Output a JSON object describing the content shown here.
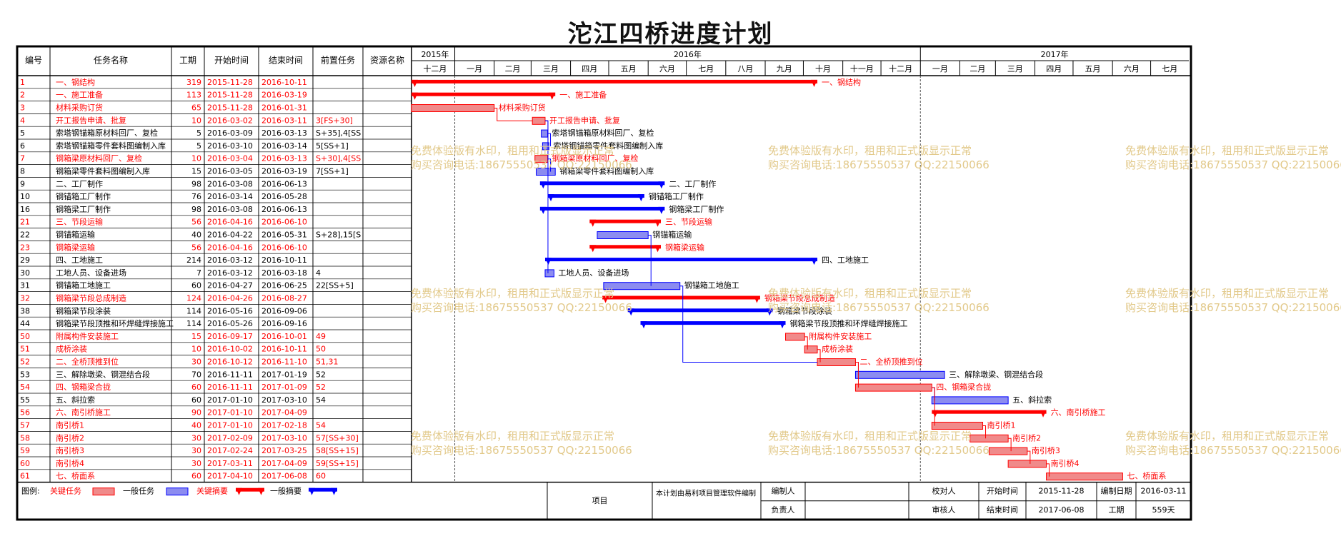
{
  "title": "沱江四桥进度计划",
  "watermark": {
    "line1": "免费体验版有水印，租用和正式版显示正常",
    "line2": "购买咨询电话:18675550537 QQ:22150066"
  },
  "colors": {
    "critical": "#ff0000",
    "normal": "#0000ff",
    "critical_fill": "#f08a8a",
    "normal_fill": "#8c8cf0",
    "watermark": "#e2c98a",
    "grid": "#000000"
  },
  "table_headers": {
    "id": "编号",
    "name": "任务名称",
    "duration": "工期",
    "start": "开始时间",
    "end": "结束时间",
    "pred": "前置任务",
    "resource": "资源名称"
  },
  "chart_data": {
    "type": "gantt",
    "timeline": {
      "years": [
        {
          "label": "2015年",
          "start": "2015-12-01",
          "end": "2016-01-01"
        },
        {
          "label": "2016年",
          "start": "2016-01-01",
          "end": "2017-01-01"
        },
        {
          "label": "2017年",
          "start": "2017-01-01",
          "end": "2017-07-31"
        }
      ],
      "months": [
        {
          "label": "十二月",
          "start": "2015-12-01",
          "end": "2016-01-01"
        },
        {
          "label": "一月",
          "start": "2016-01-01",
          "end": "2016-02-01"
        },
        {
          "label": "二月",
          "start": "2016-02-01",
          "end": "2016-03-01"
        },
        {
          "label": "三月",
          "start": "2016-03-01",
          "end": "2016-04-01"
        },
        {
          "label": "四月",
          "start": "2016-04-01",
          "end": "2016-05-01"
        },
        {
          "label": "五月",
          "start": "2016-05-01",
          "end": "2016-06-01"
        },
        {
          "label": "六月",
          "start": "2016-06-01",
          "end": "2016-07-01"
        },
        {
          "label": "七月",
          "start": "2016-07-01",
          "end": "2016-08-01"
        },
        {
          "label": "八月",
          "start": "2016-08-01",
          "end": "2016-09-01"
        },
        {
          "label": "九月",
          "start": "2016-09-01",
          "end": "2016-10-01"
        },
        {
          "label": "十月",
          "start": "2016-10-01",
          "end": "2016-11-01"
        },
        {
          "label": "十一月",
          "start": "2016-11-01",
          "end": "2016-12-01"
        },
        {
          "label": "十二月",
          "start": "2016-12-01",
          "end": "2017-01-01"
        },
        {
          "label": "一月",
          "start": "2017-01-01",
          "end": "2017-02-01"
        },
        {
          "label": "二月",
          "start": "2017-02-01",
          "end": "2017-03-01"
        },
        {
          "label": "三月",
          "start": "2017-03-01",
          "end": "2017-04-01"
        },
        {
          "label": "四月",
          "start": "2017-04-01",
          "end": "2017-05-01"
        },
        {
          "label": "五月",
          "start": "2017-05-01",
          "end": "2017-06-01"
        },
        {
          "label": "六月",
          "start": "2017-06-01",
          "end": "2017-07-01"
        },
        {
          "label": "七月",
          "start": "2017-07-01",
          "end": "2017-07-31"
        }
      ]
    },
    "tasks": [
      {
        "id": "1",
        "name": "一、钢结构",
        "dur": "319",
        "start": "2015-11-28",
        "end": "2016-10-11",
        "pred": "",
        "critical": true,
        "summary": true,
        "label": "一、钢结构"
      },
      {
        "id": "2",
        "name": "一、施工准备",
        "dur": "113",
        "start": "2015-11-28",
        "end": "2016-03-19",
        "pred": "",
        "critical": true,
        "summary": true,
        "label": "一、施工准备"
      },
      {
        "id": "3",
        "name": "材料采购订货",
        "dur": "65",
        "start": "2015-11-28",
        "end": "2016-01-31",
        "pred": "",
        "critical": true,
        "summary": false,
        "label": "材料采购订货"
      },
      {
        "id": "4",
        "name": "开工报告申请、批复",
        "dur": "10",
        "start": "2016-03-02",
        "end": "2016-03-11",
        "pred": "3[FS+30]",
        "critical": true,
        "summary": false,
        "label": "开工报告申请、批复"
      },
      {
        "id": "5",
        "name": "索塔钢锚箱原材料回厂、复检",
        "dur": "5",
        "start": "2016-03-09",
        "end": "2016-03-13",
        "pred": "S+35],4[SS",
        "critical": false,
        "summary": false,
        "label": "索塔钢锚箱原材料回厂、复检"
      },
      {
        "id": "6",
        "name": "索塔钢锚箱零件套料图编制入库",
        "dur": "5",
        "start": "2016-03-10",
        "end": "2016-03-14",
        "pred": "5[SS+1]",
        "critical": false,
        "summary": false,
        "label": "索塔钢锚箱零件套料图编制入库"
      },
      {
        "id": "7",
        "name": "钢箱梁原材料回厂、复检",
        "dur": "10",
        "start": "2016-03-04",
        "end": "2016-03-13",
        "pred": "S+30],4[SS",
        "critical": true,
        "summary": false,
        "label": "钢箱梁原材料回厂、复检"
      },
      {
        "id": "8",
        "name": "钢箱梁零件套料图编制入库",
        "dur": "15",
        "start": "2016-03-05",
        "end": "2016-03-19",
        "pred": "7[SS+1]",
        "critical": false,
        "summary": false,
        "label": "钢箱梁零件套料图编制入库"
      },
      {
        "id": "9",
        "name": "二、工厂制作",
        "dur": "98",
        "start": "2016-03-08",
        "end": "2016-06-13",
        "pred": "",
        "critical": false,
        "summary": true,
        "label": "二、工厂制作"
      },
      {
        "id": "10",
        "name": "钢锚箱工厂制作",
        "dur": "76",
        "start": "2016-03-14",
        "end": "2016-05-28",
        "pred": "",
        "critical": false,
        "summary": true,
        "label": "钢锚箱工厂制作"
      },
      {
        "id": "16",
        "name": "钢箱梁工厂制作",
        "dur": "98",
        "start": "2016-03-08",
        "end": "2016-06-13",
        "pred": "",
        "critical": false,
        "summary": true,
        "label": "钢箱梁工厂制作"
      },
      {
        "id": "21",
        "name": "三、节段运输",
        "dur": "56",
        "start": "2016-04-16",
        "end": "2016-06-10",
        "pred": "",
        "critical": true,
        "summary": true,
        "label": "三、节段运输"
      },
      {
        "id": "22",
        "name": "钢锚箱运输",
        "dur": "40",
        "start": "2016-04-22",
        "end": "2016-05-31",
        "pred": "S+28],15[S",
        "critical": false,
        "summary": false,
        "label": "钢锚箱运输"
      },
      {
        "id": "23",
        "name": "钢箱梁运输",
        "dur": "56",
        "start": "2016-04-16",
        "end": "2016-06-10",
        "pred": "",
        "critical": true,
        "summary": true,
        "label": "钢箱梁运输"
      },
      {
        "id": "29",
        "name": "四、工地施工",
        "dur": "214",
        "start": "2016-03-12",
        "end": "2016-10-11",
        "pred": "",
        "critical": false,
        "summary": true,
        "label": "四、工地施工"
      },
      {
        "id": "30",
        "name": "工地人员、设备进场",
        "dur": "7",
        "start": "2016-03-12",
        "end": "2016-03-18",
        "pred": "4",
        "critical": false,
        "summary": false,
        "label": "工地人员、设备进场"
      },
      {
        "id": "31",
        "name": "钢锚箱工地施工",
        "dur": "60",
        "start": "2016-04-27",
        "end": "2016-06-25",
        "pred": "22[SS+5]",
        "critical": false,
        "summary": false,
        "label": "钢锚箱工地施工"
      },
      {
        "id": "32",
        "name": "钢箱梁节段总成制造",
        "dur": "124",
        "start": "2016-04-26",
        "end": "2016-08-27",
        "pred": "",
        "critical": true,
        "summary": true,
        "label": "钢箱梁节段总成制造"
      },
      {
        "id": "38",
        "name": "钢箱梁节段涂装",
        "dur": "114",
        "start": "2016-05-16",
        "end": "2016-09-06",
        "pred": "",
        "critical": false,
        "summary": true,
        "label": "钢箱梁节段涂装"
      },
      {
        "id": "44",
        "name": "钢箱梁节段顶推和环焊缝焊接施工",
        "dur": "114",
        "start": "2016-05-26",
        "end": "2016-09-16",
        "pred": "",
        "critical": false,
        "summary": true,
        "label": "钢箱梁节段顶推和环焊缝焊接施工"
      },
      {
        "id": "50",
        "name": "附属构件安装施工",
        "dur": "15",
        "start": "2016-09-17",
        "end": "2016-10-01",
        "pred": "49",
        "critical": true,
        "summary": false,
        "label": "附属构件安装施工"
      },
      {
        "id": "51",
        "name": "成桥涂装",
        "dur": "10",
        "start": "2016-10-02",
        "end": "2016-10-11",
        "pred": "50",
        "critical": true,
        "summary": false,
        "label": "成桥涂装"
      },
      {
        "id": "52",
        "name": "二、全桥顶推到位",
        "dur": "30",
        "start": "2016-10-12",
        "end": "2016-11-10",
        "pred": "51,31",
        "critical": true,
        "summary": false,
        "label": "二、全桥顶推到位"
      },
      {
        "id": "53",
        "name": "三、解除墩梁、钢混结合段",
        "dur": "70",
        "start": "2016-11-11",
        "end": "2017-01-19",
        "pred": "52",
        "critical": false,
        "summary": false,
        "label": "三、解除墩梁、钢混结合段"
      },
      {
        "id": "54",
        "name": "四、钢箱梁合拢",
        "dur": "60",
        "start": "2016-11-11",
        "end": "2017-01-09",
        "pred": "52",
        "critical": true,
        "summary": false,
        "label": "四、钢箱梁合拢"
      },
      {
        "id": "55",
        "name": "五、斜拉索",
        "dur": "60",
        "start": "2017-01-10",
        "end": "2017-03-10",
        "pred": "54",
        "critical": false,
        "summary": false,
        "label": "五、斜拉索"
      },
      {
        "id": "56",
        "name": "六、南引桥施工",
        "dur": "90",
        "start": "2017-01-10",
        "end": "2017-04-09",
        "pred": "",
        "critical": true,
        "summary": true,
        "label": "六、南引桥施工"
      },
      {
        "id": "57",
        "name": "南引桥1",
        "dur": "40",
        "start": "2017-01-10",
        "end": "2017-02-18",
        "pred": "54",
        "critical": true,
        "summary": false,
        "label": "南引桥1"
      },
      {
        "id": "58",
        "name": "南引桥2",
        "dur": "30",
        "start": "2017-02-09",
        "end": "2017-03-10",
        "pred": "57[SS+30]",
        "critical": true,
        "summary": false,
        "label": "南引桥2"
      },
      {
        "id": "59",
        "name": "南引桥3",
        "dur": "30",
        "start": "2017-02-24",
        "end": "2017-03-25",
        "pred": "58[SS+15]",
        "critical": true,
        "summary": false,
        "label": "南引桥3"
      },
      {
        "id": "60",
        "name": "南引桥4",
        "dur": "30",
        "start": "2017-03-11",
        "end": "2017-04-09",
        "pred": "59[SS+15]",
        "critical": true,
        "summary": false,
        "label": "南引桥4"
      },
      {
        "id": "61",
        "name": "七、桥面系",
        "dur": "60",
        "start": "2017-04-10",
        "end": "2017-06-08",
        "pred": "60",
        "critical": true,
        "summary": false,
        "label": "七、桥面系"
      }
    ]
  },
  "legend": {
    "title": "图例:",
    "critical_task": "关键任务",
    "normal_task": "一般任务",
    "critical_summary": "关键摘要",
    "normal_summary": "一般摘要"
  },
  "footer": {
    "project_label": "项目",
    "note": "本计划由易利项目管理软件编制",
    "editor": "编制人",
    "responsible": "负责人",
    "checker": "校对人",
    "reviewer": "审核人",
    "start_label": "开始时间",
    "start_value": "2015-11-28",
    "end_label": "结束时间",
    "end_value": "2017-06-08",
    "date_label": "编制日期",
    "date_value": "2016-03-11",
    "duration_label": "工期",
    "duration_value": "559天"
  }
}
